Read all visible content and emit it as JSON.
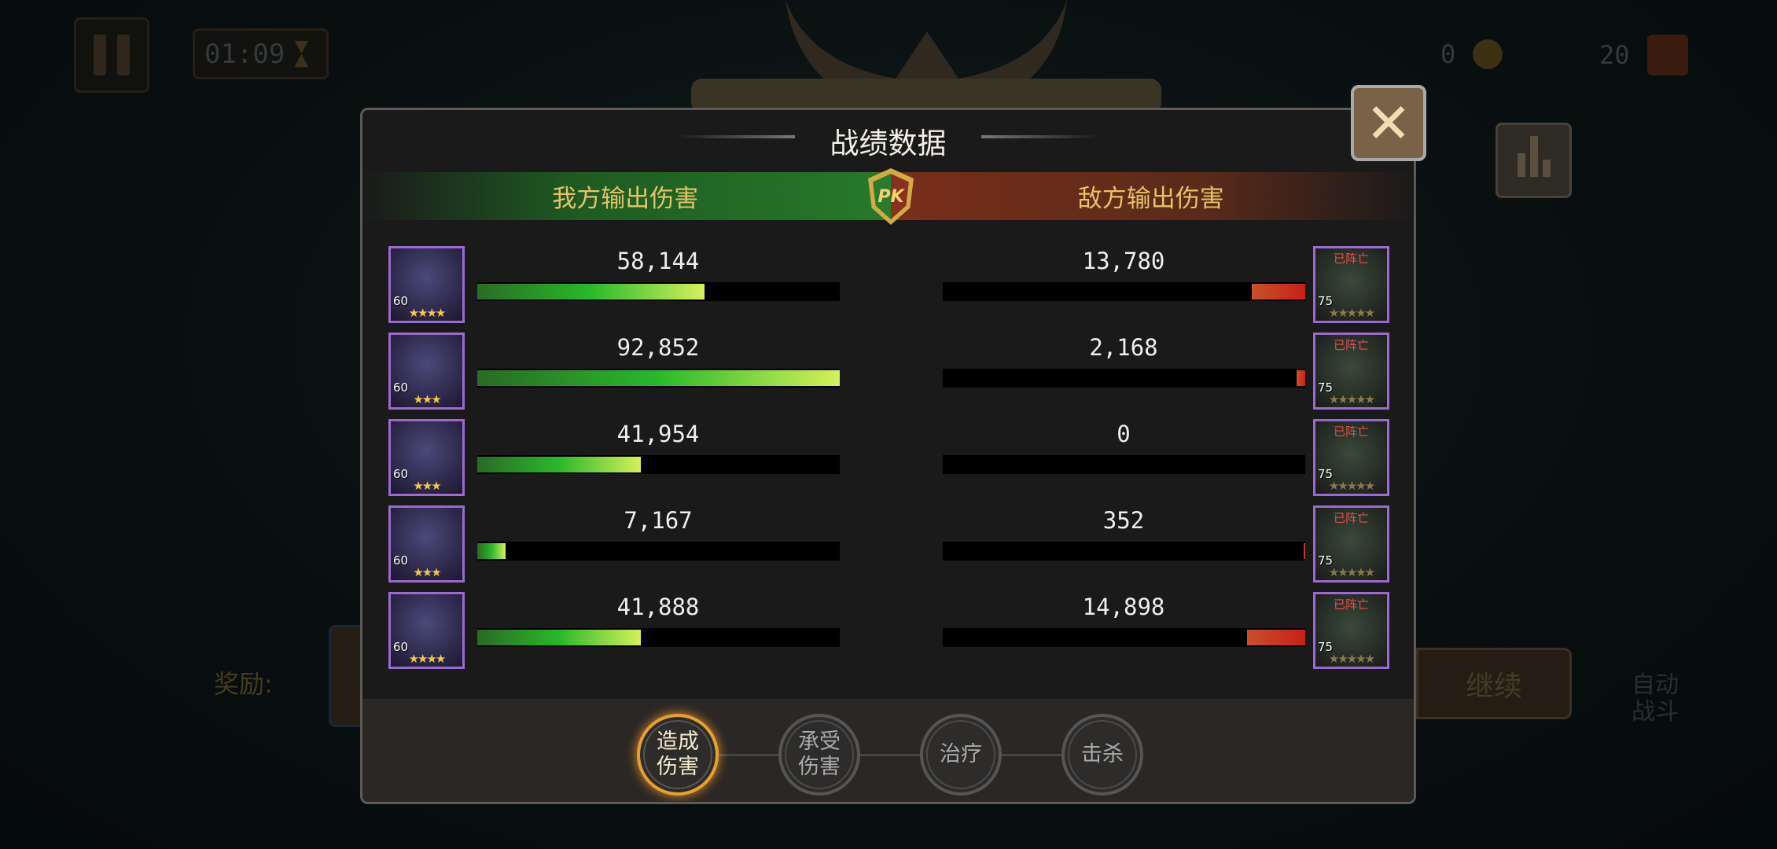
{
  "hud": {
    "timer": "01:09",
    "coins": "0",
    "chests": "20"
  },
  "panel": {
    "title": "战绩数据",
    "ally_header": "我方输出伤害",
    "enemy_header": "敌方输出伤害",
    "pk_badge": "PK",
    "close_icon": "close-x-icon",
    "max_value": 92852,
    "ally": [
      {
        "value": 58144,
        "label": "58,144",
        "level": "60",
        "stars": "★★★★"
      },
      {
        "value": 92852,
        "label": "92,852",
        "level": "60",
        "stars": "★★★"
      },
      {
        "value": 41954,
        "label": "41,954",
        "level": "60",
        "stars": "★★★"
      },
      {
        "value": 7167,
        "label": "7,167",
        "level": "60",
        "stars": "★★★"
      },
      {
        "value": 41888,
        "label": "41,888",
        "level": "60",
        "stars": "★★★★"
      }
    ],
    "enemy": [
      {
        "value": 13780,
        "label": "13,780",
        "level": "75",
        "stars": "★★★★★",
        "status": "已阵亡"
      },
      {
        "value": 2168,
        "label": "2,168",
        "level": "75",
        "stars": "★★★★★",
        "status": "已阵亡"
      },
      {
        "value": 0,
        "label": "0",
        "level": "75",
        "stars": "★★★★★",
        "status": "已阵亡"
      },
      {
        "value": 352,
        "label": "352",
        "level": "75",
        "stars": "★★★★★",
        "status": "已阵亡"
      },
      {
        "value": 14898,
        "label": "14,898",
        "level": "75",
        "stars": "★★★★★",
        "status": "已阵亡"
      }
    ],
    "tabs": [
      {
        "label": "造成伤害",
        "active": true
      },
      {
        "label": "承受伤害",
        "active": false
      },
      {
        "label": "治疗",
        "active": false
      },
      {
        "label": "击杀",
        "active": false
      }
    ]
  },
  "background": {
    "reward_label": "奖励:",
    "continue_button": "继续",
    "auto_battle": "自动战斗"
  },
  "colors": {
    "ally_bar": "#2ab82a",
    "enemy_bar": "#c8201a",
    "header_text": "#e6c36a",
    "active_tab": "#e6a030"
  }
}
